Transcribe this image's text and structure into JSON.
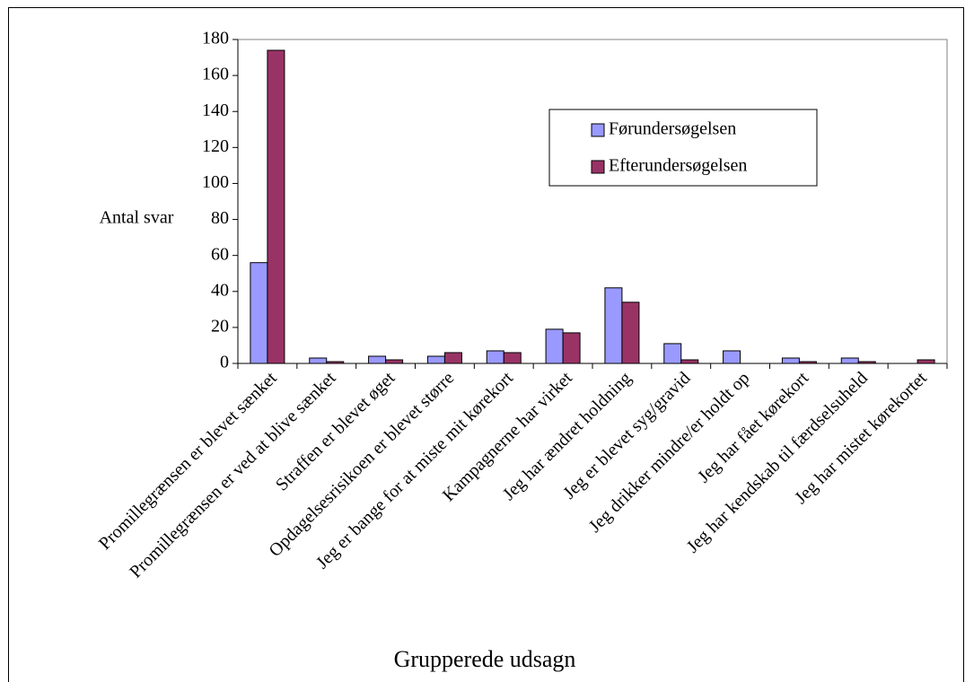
{
  "chart_data": {
    "type": "bar",
    "y_label": "Antal svar",
    "x_label": "Grupperede udsagn",
    "categories": [
      "Promillegrænsen er blevet sænket",
      "Promillegrænsen er ved at blive sænket",
      "Straffen er blevet øget",
      "Opdagelsesrisikoen er blevet større",
      "Jeg er bange for at miste mit kørekort",
      "Kampagnerne har virket",
      "Jeg har ændret holdning",
      "Jeg er blevet syg/gravid",
      "Jeg drikker mindre/er holdt op",
      "Jeg har fået kørekort",
      "Jeg har kendskab til færdselsuheld",
      "Jeg har mistet kørekortet"
    ],
    "series": [
      {
        "name": "Førundersøgelsen",
        "color": "#9999ff",
        "values": [
          56,
          3,
          4,
          4,
          7,
          19,
          42,
          11,
          7,
          3,
          3,
          0
        ]
      },
      {
        "name": "Efterundersøgelsen",
        "color": "#993366",
        "values": [
          174,
          1,
          2,
          6,
          6,
          17,
          34,
          2,
          0,
          1,
          1,
          2
        ]
      }
    ],
    "ylim": [
      0,
      180
    ],
    "yticks": [
      0,
      20,
      40,
      60,
      80,
      100,
      120,
      140,
      160,
      180
    ]
  }
}
